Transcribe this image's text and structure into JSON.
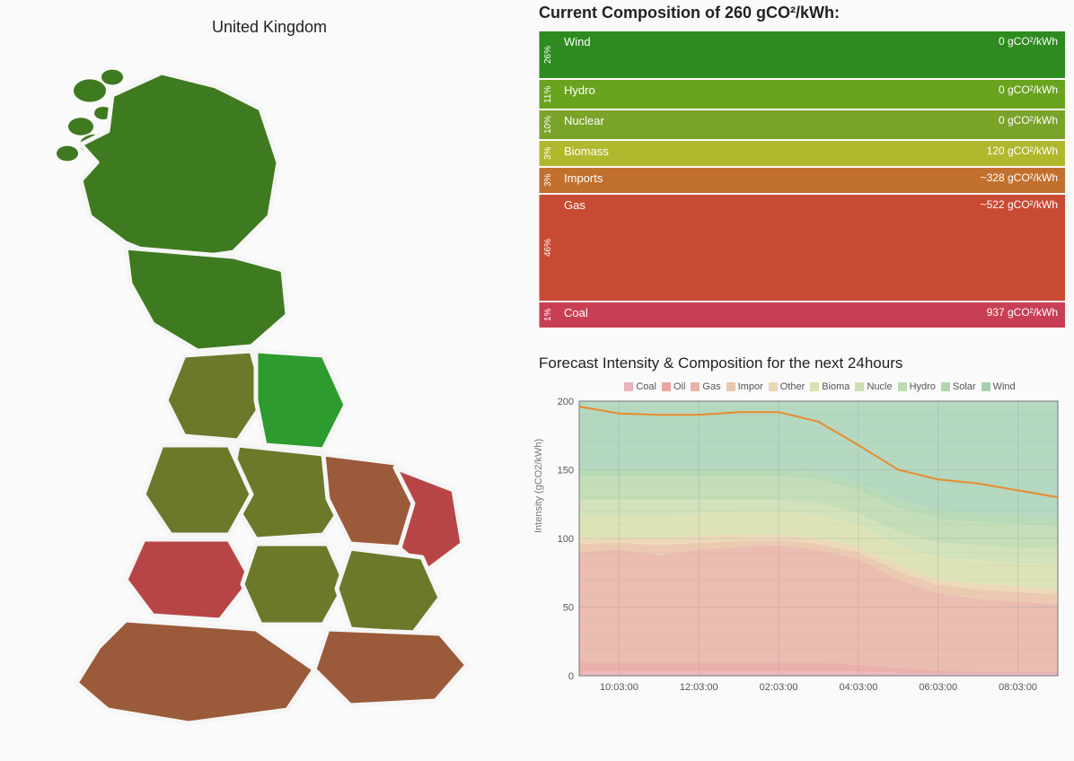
{
  "map": {
    "title": "United Kingdom",
    "regions": {
      "scotland_n": "#3e7a1f",
      "scotland_s": "#3e7a1f",
      "northern_ireland": "#3e7a1f",
      "north_england_w": "#6b7a2a",
      "north_england_e": "#2e9b2e",
      "yorkshire": "#6b7a2a",
      "east_mid": "#9b5a3a",
      "east_anglia": "#b84545",
      "wales_n": "#6b7a2a",
      "wales_s": "#b84545",
      "west_mid": "#6b7a2a",
      "london": "#6b7a2a",
      "south_east": "#9b5a3a",
      "south_west": "#9b5a3a"
    },
    "stroke": "#f5f5f5",
    "stroke_width": 5
  },
  "composition": {
    "title_prefix": "Current Composition of ",
    "title_value": "260 gCO²/kWh:",
    "rows": [
      {
        "pct": "26%",
        "name": "Wind",
        "value": "0 gCO²/kWh",
        "color": "#2e8b1f",
        "h": 52
      },
      {
        "pct": "11%",
        "name": "Hydro",
        "value": "0 gCO²/kWh",
        "color": "#6aa31f",
        "h": 32
      },
      {
        "pct": "10%",
        "name": "Nuclear",
        "value": "0 gCO²/kWh",
        "color": "#7aa32a",
        "h": 32
      },
      {
        "pct": "3%",
        "name": "Biomass",
        "value": "120 gCO²/kWh",
        "color": "#b0b82e",
        "h": 28
      },
      {
        "pct": "3%",
        "name": "Imports",
        "value": "~328 gCO²/kWh",
        "color": "#c2702e",
        "h": 28
      },
      {
        "pct": "46%",
        "name": "Gas",
        "value": "~522 gCO²/kWh",
        "color": "#c94a33",
        "h": 118
      },
      {
        "pct": "1%",
        "name": "Coal",
        "value": "937 gCO²/kWh",
        "color": "#c83f55",
        "h": 28
      }
    ]
  },
  "forecast": {
    "title": "Forecast Intensity & Composition for the next 24hours",
    "ylabel": "Intensity (gCO2/kWh)",
    "ylim": [
      0,
      200
    ],
    "ytick_step": 50,
    "grid_color": "#999999",
    "background": "#fafafa",
    "line_color": "#e88b2e",
    "line_width": 2,
    "x_ticks": [
      "10:03:00",
      "12:03:00",
      "02:03:00",
      "04:03:00",
      "06:03:00",
      "08:03:00"
    ],
    "legend": [
      {
        "label": "Coal",
        "color": "#e7b5bb"
      },
      {
        "label": "Oil",
        "color": "#e8a7a3"
      },
      {
        "label": "Gas",
        "color": "#e9b4a7"
      },
      {
        "label": "Impor",
        "color": "#e9c7ad"
      },
      {
        "label": "Other",
        "color": "#ead6b4"
      },
      {
        "label": "Bioma",
        "color": "#dbe0b0"
      },
      {
        "label": "Nucle",
        "color": "#cedfb2"
      },
      {
        "label": "Hydro",
        "color": "#bedab2"
      },
      {
        "label": "Solar",
        "color": "#b0d6b0"
      },
      {
        "label": "Wind",
        "color": "#a3d1ad"
      }
    ],
    "x": [
      0,
      1,
      2,
      3,
      4,
      5,
      6,
      7,
      8,
      9,
      10,
      11,
      12
    ],
    "line": [
      196,
      191,
      190,
      190,
      192,
      192,
      185,
      168,
      150,
      143,
      140,
      135,
      130
    ],
    "stacks_top_to_bottom": [
      {
        "key": "wind",
        "color": "#b4d8c0",
        "vals": [
          200,
          200,
          200,
          200,
          200,
          200,
          200,
          200,
          200,
          200,
          200,
          200,
          200
        ]
      },
      {
        "key": "solar",
        "color": "#b8dab6",
        "vals": [
          150,
          150,
          150,
          150,
          150,
          150,
          148,
          140,
          128,
          120,
          118,
          116,
          115
        ]
      },
      {
        "key": "hydro",
        "color": "#c4deb8",
        "vals": [
          145,
          145,
          145,
          145,
          145,
          145,
          143,
          135,
          122,
          114,
          112,
          110,
          109
        ]
      },
      {
        "key": "nucle",
        "color": "#d2e2ba",
        "vals": [
          128,
          128,
          128,
          128,
          128,
          128,
          126,
          118,
          105,
          97,
          95,
          93,
          92
        ]
      },
      {
        "key": "bioma",
        "color": "#dde3b6",
        "vals": [
          115,
          115,
          116,
          118,
          119,
          119,
          117,
          110,
          95,
          86,
          84,
          82,
          81
        ]
      },
      {
        "key": "other",
        "color": "#ecd9ba",
        "vals": [
          100,
          100,
          100,
          102,
          103,
          103,
          100,
          94,
          80,
          70,
          67,
          65,
          63
        ]
      },
      {
        "key": "impor",
        "color": "#eccab2",
        "vals": [
          96,
          97,
          95,
          97,
          98,
          99,
          96,
          90,
          76,
          66,
          63,
          61,
          59
        ]
      },
      {
        "key": "gas",
        "color": "#ebbcb0",
        "vals": [
          90,
          92,
          88,
          92,
          94,
          95,
          92,
          85,
          70,
          60,
          56,
          54,
          52
        ]
      },
      {
        "key": "oil",
        "color": "#eab1ac",
        "vals": [
          10,
          10,
          10,
          10,
          10,
          10,
          10,
          8,
          6,
          4,
          3,
          3,
          3
        ]
      },
      {
        "key": "coal",
        "color": "#e9b9c0",
        "vals": [
          3,
          3,
          3,
          3,
          3,
          3,
          3,
          3,
          2,
          2,
          2,
          2,
          2
        ]
      }
    ]
  }
}
